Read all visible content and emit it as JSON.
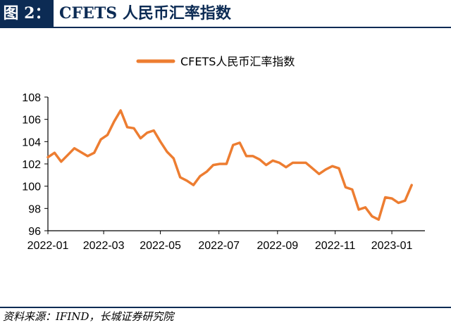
{
  "figure": {
    "label": "图 2：",
    "title": "CFETS 人民币汇率指数"
  },
  "source": "资料来源：IFIND，长城证券研究院",
  "colors": {
    "header_bg": "#0c2b54",
    "line": "#ed7d31"
  },
  "chart_data": {
    "type": "line",
    "ylim": [
      96,
      108
    ],
    "yticks": [
      96,
      98,
      100,
      102,
      104,
      106,
      108
    ],
    "xlim": [
      "2021-12-31",
      "2023-02-03"
    ],
    "xtick_labels": [
      "2022-01",
      "2022-03",
      "2022-05",
      "2022-07",
      "2022-09",
      "2022-11",
      "2023-01"
    ],
    "xtick_dates": [
      "2021-12-31",
      "2022-02-28",
      "2022-04-29",
      "2022-06-30",
      "2022-08-31",
      "2022-10-31",
      "2022-12-30"
    ],
    "grid": false,
    "legend_position": "top-center",
    "series": [
      {
        "name": "CFETS人民币汇率指数",
        "points": [
          [
            "2021-12-31",
            102.6
          ],
          [
            "2022-01-07",
            103.0
          ],
          [
            "2022-01-14",
            102.2
          ],
          [
            "2022-01-21",
            102.8
          ],
          [
            "2022-01-28",
            103.4
          ],
          [
            "2022-02-11",
            102.7
          ],
          [
            "2022-02-18",
            103.0
          ],
          [
            "2022-02-25",
            104.2
          ],
          [
            "2022-03-04",
            104.6
          ],
          [
            "2022-03-11",
            105.8
          ],
          [
            "2022-03-18",
            106.8
          ],
          [
            "2022-03-25",
            105.3
          ],
          [
            "2022-04-01",
            105.2
          ],
          [
            "2022-04-08",
            104.3
          ],
          [
            "2022-04-15",
            104.8
          ],
          [
            "2022-04-22",
            105.0
          ],
          [
            "2022-04-29",
            104.0
          ],
          [
            "2022-05-06",
            103.1
          ],
          [
            "2022-05-13",
            102.5
          ],
          [
            "2022-05-20",
            100.8
          ],
          [
            "2022-05-27",
            100.5
          ],
          [
            "2022-06-03",
            100.1
          ],
          [
            "2022-06-10",
            100.9
          ],
          [
            "2022-06-17",
            101.3
          ],
          [
            "2022-06-24",
            101.9
          ],
          [
            "2022-07-01",
            102.0
          ],
          [
            "2022-07-08",
            102.0
          ],
          [
            "2022-07-15",
            103.7
          ],
          [
            "2022-07-22",
            103.9
          ],
          [
            "2022-07-29",
            102.7
          ],
          [
            "2022-08-05",
            102.7
          ],
          [
            "2022-08-12",
            102.4
          ],
          [
            "2022-08-19",
            101.9
          ],
          [
            "2022-08-26",
            102.3
          ],
          [
            "2022-09-02",
            102.1
          ],
          [
            "2022-09-09",
            101.7
          ],
          [
            "2022-09-16",
            102.1
          ],
          [
            "2022-09-23",
            102.1
          ],
          [
            "2022-09-30",
            102.1
          ],
          [
            "2022-10-07",
            101.6
          ],
          [
            "2022-10-14",
            101.1
          ],
          [
            "2022-10-21",
            101.5
          ],
          [
            "2022-10-28",
            101.8
          ],
          [
            "2022-11-04",
            101.6
          ],
          [
            "2022-11-11",
            99.9
          ],
          [
            "2022-11-18",
            99.7
          ],
          [
            "2022-11-25",
            97.9
          ],
          [
            "2022-12-02",
            98.1
          ],
          [
            "2022-12-09",
            97.3
          ],
          [
            "2022-12-16",
            97.0
          ],
          [
            "2022-12-23",
            99.0
          ],
          [
            "2022-12-30",
            98.9
          ],
          [
            "2023-01-06",
            98.5
          ],
          [
            "2023-01-13",
            98.7
          ],
          [
            "2023-01-20",
            100.1
          ]
        ]
      }
    ]
  }
}
